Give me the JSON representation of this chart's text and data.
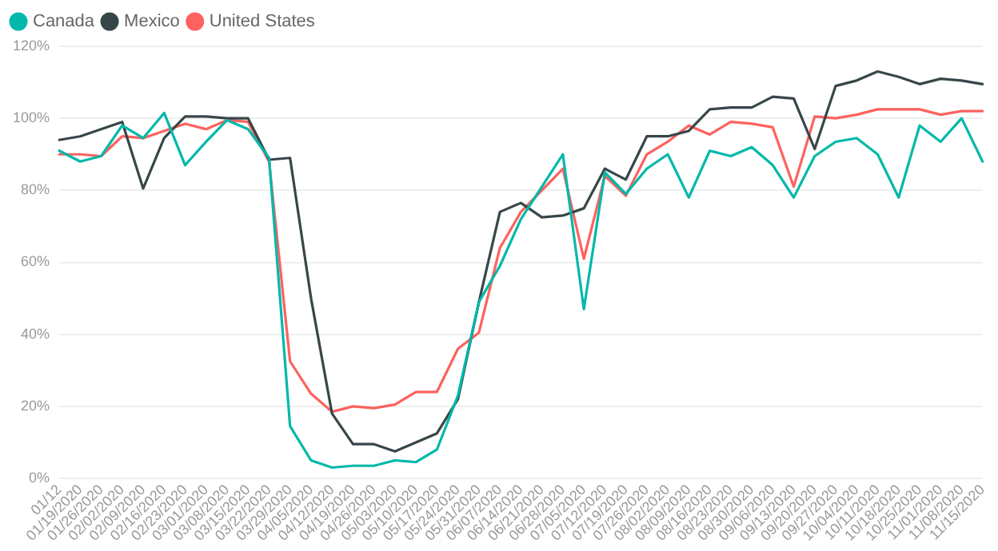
{
  "chart_data": {
    "type": "line",
    "categories": [
      "01/12",
      "01/19/2020",
      "01/26/2020",
      "02/02/2020",
      "02/09/2020",
      "02/16/2020",
      "02/23/2020",
      "03/01/2020",
      "03/08/2020",
      "03/15/2020",
      "03/22/2020",
      "03/29/2020",
      "04/05/2020",
      "04/12/2020",
      "04/19/2020",
      "04/26/2020",
      "05/03/2020",
      "05/10/2020",
      "05/17/2020",
      "05/24/2020",
      "05/31/2020",
      "06/07/2020",
      "06/14/2020",
      "06/21/2020",
      "06/28/2020",
      "07/05/2020",
      "07/12/2020",
      "07/19/2020",
      "07/26/2020",
      "08/02/2020",
      "08/09/2020",
      "08/16/2020",
      "08/23/2020",
      "08/30/2020",
      "09/06/2020",
      "09/13/2020",
      "09/20/2020",
      "09/27/2020",
      "10/04/2020",
      "10/11/2020",
      "10/18/2020",
      "10/25/2020",
      "11/01/2020",
      "11/08/2020",
      "11/15/2020"
    ],
    "series": [
      {
        "name": "Canada",
        "color": "#01b8aa",
        "values": [
          91,
          88,
          89.5,
          98,
          94.5,
          101.5,
          87,
          93.5,
          99.5,
          97,
          89,
          14.5,
          5,
          3,
          3.5,
          3.5,
          5,
          4.5,
          8,
          23,
          49,
          59,
          72,
          81,
          90,
          47,
          85,
          79,
          86,
          90,
          78,
          91,
          89.5,
          92,
          87,
          78,
          89.5,
          93.5,
          94.5,
          90,
          78,
          98,
          93.5,
          100,
          88
        ]
      },
      {
        "name": "Mexico",
        "color": "#374649",
        "values": [
          94,
          95,
          97,
          99,
          80.5,
          94.5,
          100.5,
          100.5,
          100,
          100,
          88.5,
          89,
          50,
          18,
          9.5,
          9.5,
          7.5,
          10,
          12.5,
          22,
          49,
          74,
          76.5,
          72.5,
          73,
          75,
          86,
          83,
          95,
          95,
          96.5,
          102.5,
          103,
          103,
          106,
          105.5,
          91.5,
          109,
          110.5,
          113,
          111.5,
          109.5,
          111,
          110.5,
          109.5
        ]
      },
      {
        "name": "United States",
        "color": "#fd625e",
        "values": [
          90,
          90,
          89.5,
          95,
          94.5,
          96.5,
          98.5,
          97,
          99.5,
          99,
          88,
          32.5,
          23.5,
          18.5,
          20,
          19.5,
          20.5,
          24,
          24,
          36,
          40.5,
          64,
          74,
          80,
          86,
          61,
          84,
          78.5,
          90,
          93.5,
          98,
          95.5,
          99,
          98.5,
          97.5,
          81,
          100.5,
          100,
          101,
          102.5,
          102.5,
          102.5,
          101,
          102,
          102
        ]
      }
    ],
    "ylim": [
      0,
      120
    ],
    "yticks": [
      {
        "value": 0,
        "label": "0%"
      },
      {
        "value": 20,
        "label": "20%"
      },
      {
        "value": 40,
        "label": "40%"
      },
      {
        "value": 60,
        "label": "60%"
      },
      {
        "value": 80,
        "label": "80%"
      },
      {
        "value": 100,
        "label": "100%"
      },
      {
        "value": 120,
        "label": "120%"
      }
    ],
    "grid": "y",
    "legend": "top left",
    "marker": "none",
    "line_style": "solid"
  }
}
